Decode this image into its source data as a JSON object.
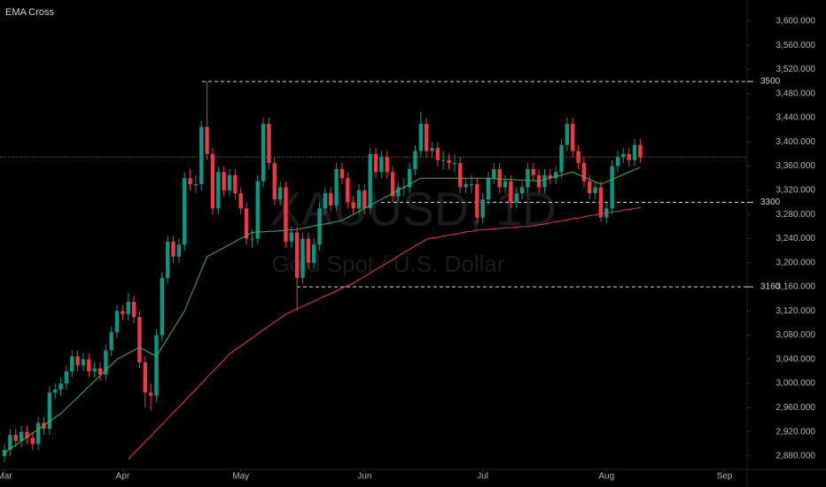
{
  "chart_data": {
    "type": "candlestick",
    "title": "EMA Cross",
    "watermark": "XAUUSD, 1D",
    "watermark_subtitle": "Gold Spot / U.S. Dollar",
    "up_color": "#089981",
    "down_color": "#f23645",
    "open": [
      2880,
      2890,
      2915,
      2905,
      2920,
      2910,
      2900,
      2935,
      2925,
      2985,
      2990,
      3000,
      3020,
      3045,
      3030,
      3040,
      3020,
      3025,
      3015,
      3055,
      3085,
      3120,
      3115,
      3135,
      3110,
      3035,
      2985,
      2980,
      3080,
      3175,
      3235,
      3210,
      3230,
      3340,
      3330,
      3330,
      3425,
      3380,
      3290,
      3350,
      3320,
      3345,
      3315,
      3290,
      3240,
      3240,
      3335,
      3430,
      3365,
      3305,
      3325,
      3235,
      3250,
      3175,
      3240,
      3200,
      3230,
      3290,
      3315,
      3295,
      3355,
      3340,
      3300,
      3290,
      3320,
      3290,
      3380,
      3350,
      3375,
      3350,
      3310,
      3325,
      3325,
      3355,
      3385,
      3430,
      3385,
      3390,
      3370,
      3370,
      3365,
      3365,
      3325,
      3330,
      3330,
      3275,
      3305,
      3340,
      3355,
      3325,
      3335,
      3300,
      3315,
      3325,
      3355,
      3345,
      3325,
      3345,
      3340,
      3350,
      3395,
      3430,
      3385,
      3365,
      3335,
      3315,
      3325,
      3275,
      3290,
      3360,
      3375,
      3380,
      3370,
      3395
    ],
    "high": [
      2900,
      2925,
      2925,
      2930,
      2930,
      2920,
      2945,
      2945,
      2995,
      3000,
      3010,
      3030,
      3055,
      3055,
      3050,
      3050,
      3035,
      3035,
      3065,
      3095,
      3130,
      3130,
      3150,
      3145,
      3120,
      3045,
      3000,
      3090,
      3185,
      3245,
      3245,
      3240,
      3350,
      3355,
      3345,
      3435,
      3500,
      3390,
      3360,
      3360,
      3355,
      3355,
      3325,
      3300,
      3255,
      3345,
      3440,
      3440,
      3375,
      3335,
      3335,
      3260,
      3260,
      3250,
      3250,
      3240,
      3300,
      3325,
      3325,
      3365,
      3365,
      3350,
      3310,
      3330,
      3330,
      3390,
      3390,
      3385,
      3385,
      3360,
      3335,
      3340,
      3365,
      3395,
      3450,
      3440,
      3400,
      3400,
      3385,
      3380,
      3380,
      3375,
      3340,
      3345,
      3340,
      3315,
      3350,
      3365,
      3365,
      3345,
      3345,
      3325,
      3335,
      3365,
      3365,
      3355,
      3355,
      3355,
      3360,
      3405,
      3440,
      3440,
      3395,
      3375,
      3345,
      3335,
      3335,
      3300,
      3370,
      3385,
      3390,
      3390,
      3405,
      3405
    ],
    "low": [
      2870,
      2880,
      2895,
      2895,
      2900,
      2890,
      2890,
      2915,
      2915,
      2975,
      2980,
      2990,
      3010,
      3020,
      3020,
      3010,
      3010,
      3005,
      3005,
      3045,
      3075,
      3105,
      3105,
      3100,
      3025,
      2960,
      2955,
      2970,
      3070,
      3165,
      3200,
      3200,
      3220,
      3320,
      3315,
      3320,
      3370,
      3280,
      3280,
      3310,
      3310,
      3305,
      3280,
      3230,
      3225,
      3230,
      3325,
      3355,
      3295,
      3295,
      3225,
      3225,
      3120,
      3165,
      3190,
      3190,
      3220,
      3280,
      3285,
      3285,
      3330,
      3290,
      3280,
      3280,
      3280,
      3280,
      3340,
      3340,
      3340,
      3300,
      3300,
      3310,
      3315,
      3345,
      3375,
      3375,
      3375,
      3360,
      3355,
      3355,
      3350,
      3315,
      3315,
      3315,
      3265,
      3265,
      3295,
      3330,
      3315,
      3315,
      3290,
      3290,
      3305,
      3315,
      3335,
      3315,
      3315,
      3330,
      3330,
      3340,
      3385,
      3375,
      3355,
      3325,
      3305,
      3305,
      3268,
      3265,
      3280,
      3350,
      3365,
      3360,
      3360,
      3365
    ],
    "close": [
      2890,
      2915,
      2905,
      2920,
      2910,
      2900,
      2935,
      2925,
      2985,
      2990,
      3000,
      3020,
      3045,
      3030,
      3040,
      3020,
      3025,
      3015,
      3055,
      3085,
      3120,
      3115,
      3135,
      3110,
      3035,
      2985,
      2980,
      3080,
      3175,
      3235,
      3210,
      3230,
      3340,
      3330,
      3330,
      3425,
      3380,
      3290,
      3350,
      3320,
      3345,
      3315,
      3290,
      3240,
      3240,
      3335,
      3430,
      3365,
      3305,
      3325,
      3235,
      3250,
      3175,
      3240,
      3200,
      3230,
      3290,
      3315,
      3295,
      3355,
      3340,
      3300,
      3290,
      3320,
      3290,
      3380,
      3350,
      3375,
      3350,
      3310,
      3325,
      3325,
      3355,
      3385,
      3430,
      3385,
      3390,
      3370,
      3370,
      3365,
      3365,
      3325,
      3330,
      3330,
      3275,
      3305,
      3340,
      3355,
      3325,
      3335,
      3300,
      3315,
      3325,
      3355,
      3345,
      3325,
      3345,
      3340,
      3350,
      3395,
      3430,
      3385,
      3365,
      3335,
      3315,
      3325,
      3275,
      3290,
      3360,
      3375,
      3380,
      3370,
      3395,
      3375
    ],
    "lines": [
      {
        "color": "#4caf50",
        "values": [
          2885,
          2892,
          2898,
          2905,
          2911,
          2918,
          2924,
          2931,
          2937,
          2944,
          2950,
          2959,
          2968,
          2977,
          2986,
          2995,
          3004,
          3013,
          3022,
          3031,
          3040,
          3045,
          3050,
          3055,
          3060,
          3055,
          3050,
          3045,
          3060,
          3075,
          3090,
          3105,
          3120,
          3143,
          3165,
          3188,
          3210,
          3215,
          3220,
          3225,
          3230,
          3235,
          3240,
          3245,
          3250,
          3251,
          3251,
          3252,
          3252,
          3253,
          3254,
          3254,
          3255,
          3257,
          3259,
          3261,
          3263,
          3264,
          3266,
          3268,
          3270,
          3275,
          3280,
          3285,
          3290,
          3295,
          3300,
          3305,
          3310,
          3315,
          3320,
          3325,
          3330,
          3335,
          3340,
          3340,
          3340,
          3340,
          3340,
          3340,
          3340,
          3340,
          3340,
          3340,
          3340,
          3340,
          3340,
          3339,
          3339,
          3338,
          3338,
          3337,
          3337,
          3336,
          3336,
          3335,
          3338,
          3340,
          3343,
          3345,
          3348,
          3350,
          3346,
          3342,
          3338,
          3334,
          3330,
          3334,
          3338,
          3342,
          3346,
          3350,
          3354,
          3358
        ]
      },
      {
        "color": "#f23645",
        "values": [
          null,
          null,
          null,
          null,
          null,
          null,
          null,
          null,
          null,
          null,
          null,
          null,
          null,
          null,
          null,
          null,
          null,
          null,
          null,
          null,
          null,
          null,
          2875,
          2885,
          2894,
          2904,
          2913,
          2923,
          2932,
          2942,
          2952,
          2961,
          2971,
          2981,
          2990,
          3000,
          3010,
          3020,
          3029,
          3039,
          3049,
          3056,
          3062,
          3069,
          3075,
          3082,
          3089,
          3095,
          3102,
          3108,
          3115,
          3119,
          3124,
          3128,
          3132,
          3136,
          3141,
          3145,
          3149,
          3153,
          3158,
          3162,
          3166,
          3172,
          3177,
          3183,
          3189,
          3194,
          3200,
          3205,
          3211,
          3217,
          3222,
          3228,
          3233,
          3239,
          3241,
          3242,
          3244,
          3246,
          3247,
          3249,
          3251,
          3252,
          3254,
          3255,
          3255,
          3256,
          3257,
          3258,
          3258,
          3259,
          3260,
          3260,
          3261,
          3263,
          3264,
          3266,
          3268,
          3269,
          3271,
          3273,
          3274,
          3276,
          3278,
          3279,
          3281,
          3282,
          3284,
          3285,
          3287,
          3288,
          3290,
          3291
        ]
      }
    ],
    "levels": [
      3500,
      3300,
      3160
    ],
    "xlim": [
      -0.8,
      132
    ],
    "xticks": [
      {
        "value": 0,
        "label": "Mar"
      },
      {
        "value": 21,
        "label": "Apr"
      },
      {
        "value": 42,
        "label": "May"
      },
      {
        "value": 64,
        "label": "Jun"
      },
      {
        "value": 85,
        "label": "Jul"
      },
      {
        "value": 107,
        "label": "Aug"
      },
      {
        "value": 128,
        "label": "Sep"
      }
    ],
    "ylim": [
      2855,
      3635
    ],
    "yticks": [
      {
        "value": 3600,
        "label": "3,600.000"
      },
      {
        "value": 3560,
        "label": "3,560.000"
      },
      {
        "value": 3520,
        "label": "3,520.000"
      },
      {
        "value": 3480,
        "label": "3,480.000"
      },
      {
        "value": 3440,
        "label": "3,440.000"
      },
      {
        "value": 3400,
        "label": "3,400.000"
      },
      {
        "value": 3360,
        "label": "3,360.000"
      },
      {
        "value": 3320,
        "label": "3,320.000"
      },
      {
        "value": 3280,
        "label": "3,280.000"
      },
      {
        "value": 3240,
        "label": "3,240.000"
      },
      {
        "value": 3200,
        "label": "3,200.000"
      },
      {
        "value": 3160,
        "label": "3,160.000"
      },
      {
        "value": 3120,
        "label": "3,120.000"
      },
      {
        "value": 3080,
        "label": "3,080.000"
      },
      {
        "value": 3040,
        "label": "3,040.000"
      },
      {
        "value": 3000,
        "label": "3,000.000"
      },
      {
        "value": 2960,
        "label": "2,960.000"
      },
      {
        "value": 2920,
        "label": "2,920.000"
      },
      {
        "value": 2880,
        "label": "2,880.000"
      }
    ]
  }
}
